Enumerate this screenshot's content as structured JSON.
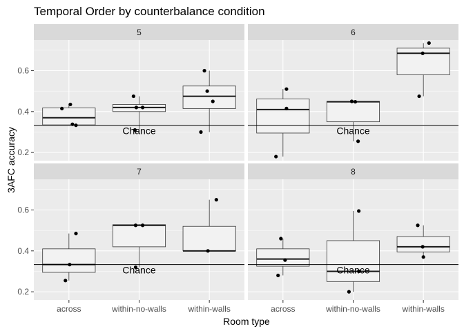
{
  "chart_data": {
    "type": "boxplot",
    "title": "Temporal Order by counterbalance condition",
    "xlabel": "Room type",
    "ylabel": "3AFC accuracy",
    "categories": [
      "across",
      "within-no-walls",
      "within-walls"
    ],
    "y_ticks": [
      0.2,
      0.4,
      0.6
    ],
    "y_tick_labels": [
      "0.2",
      "0.4",
      "0.6"
    ],
    "ylim": [
      0.16,
      0.75
    ],
    "reference_line": {
      "value": 0.333,
      "label": "Chance"
    },
    "grid": true,
    "colors": {
      "panel_bg": "#ebebeb",
      "strip_bg": "#d9d9d9",
      "grid": "#ffffff",
      "box_fill": "#f2f2f2",
      "box_stroke": "#333333",
      "point": "#000000"
    },
    "panels": [
      {
        "label": "5",
        "boxes": [
          {
            "category": "across",
            "min": 0.333,
            "q1": 0.335,
            "median": 0.37,
            "q3": 0.418,
            "max": 0.435
          },
          {
            "category": "within-no-walls",
            "min": 0.31,
            "q1": 0.4,
            "median": 0.42,
            "q3": 0.435,
            "max": 0.475
          },
          {
            "category": "within-walls",
            "min": 0.3,
            "q1": 0.415,
            "median": 0.475,
            "q3": 0.525,
            "max": 0.6
          }
        ],
        "points": [
          {
            "category": "across",
            "y": 0.415,
            "jitter": -0.1
          },
          {
            "category": "across",
            "y": 0.435,
            "jitter": 0.02
          },
          {
            "category": "across",
            "y": 0.338,
            "jitter": 0.05
          },
          {
            "category": "across",
            "y": 0.333,
            "jitter": 0.1
          },
          {
            "category": "within-no-walls",
            "y": 0.475,
            "jitter": -0.08
          },
          {
            "category": "within-no-walls",
            "y": 0.42,
            "jitter": -0.04
          },
          {
            "category": "within-no-walls",
            "y": 0.42,
            "jitter": 0.05
          },
          {
            "category": "within-no-walls",
            "y": 0.31,
            "jitter": -0.06
          },
          {
            "category": "within-walls",
            "y": 0.6,
            "jitter": -0.07
          },
          {
            "category": "within-walls",
            "y": 0.5,
            "jitter": -0.03
          },
          {
            "category": "within-walls",
            "y": 0.45,
            "jitter": 0.05
          },
          {
            "category": "within-walls",
            "y": 0.3,
            "jitter": -0.12
          }
        ]
      },
      {
        "label": "6",
        "boxes": [
          {
            "category": "across",
            "min": 0.18,
            "q1": 0.295,
            "median": 0.41,
            "q3": 0.462,
            "max": 0.51
          },
          {
            "category": "within-no-walls",
            "min": 0.255,
            "q1": 0.35,
            "median": 0.448,
            "q3": 0.45,
            "max": 0.45
          },
          {
            "category": "within-walls",
            "min": 0.475,
            "q1": 0.58,
            "median": 0.685,
            "q3": 0.71,
            "max": 0.735
          }
        ],
        "points": [
          {
            "category": "across",
            "y": 0.51,
            "jitter": 0.05
          },
          {
            "category": "across",
            "y": 0.415,
            "jitter": 0.05
          },
          {
            "category": "across",
            "y": 0.18,
            "jitter": -0.1
          },
          {
            "category": "within-no-walls",
            "y": 0.45,
            "jitter": -0.02
          },
          {
            "category": "within-no-walls",
            "y": 0.448,
            "jitter": 0.03
          },
          {
            "category": "within-no-walls",
            "y": 0.255,
            "jitter": 0.07
          },
          {
            "category": "within-walls",
            "y": 0.735,
            "jitter": 0.08
          },
          {
            "category": "within-walls",
            "y": 0.685,
            "jitter": -0.01
          },
          {
            "category": "within-walls",
            "y": 0.475,
            "jitter": -0.06
          }
        ]
      },
      {
        "label": "7",
        "boxes": [
          {
            "category": "across",
            "min": 0.255,
            "q1": 0.295,
            "median": 0.333,
            "q3": 0.41,
            "max": 0.485
          },
          {
            "category": "within-no-walls",
            "min": 0.32,
            "q1": 0.42,
            "median": 0.525,
            "q3": 0.528,
            "max": 0.53
          },
          {
            "category": "within-walls",
            "min": 0.4,
            "q1": 0.4,
            "median": 0.4,
            "q3": 0.52,
            "max": 0.65
          }
        ],
        "points": [
          {
            "category": "across",
            "y": 0.485,
            "jitter": 0.1
          },
          {
            "category": "across",
            "y": 0.333,
            "jitter": 0.01
          },
          {
            "category": "across",
            "y": 0.255,
            "jitter": -0.05
          },
          {
            "category": "within-no-walls",
            "y": 0.525,
            "jitter": -0.05
          },
          {
            "category": "within-no-walls",
            "y": 0.525,
            "jitter": 0.05
          },
          {
            "category": "within-no-walls",
            "y": 0.32,
            "jitter": -0.05
          },
          {
            "category": "within-walls",
            "y": 0.65,
            "jitter": 0.1
          },
          {
            "category": "within-walls",
            "y": 0.4,
            "jitter": -0.02
          }
        ]
      },
      {
        "label": "8",
        "boxes": [
          {
            "category": "across",
            "min": 0.28,
            "q1": 0.325,
            "median": 0.36,
            "q3": 0.41,
            "max": 0.46
          },
          {
            "category": "within-no-walls",
            "min": 0.2,
            "q1": 0.25,
            "median": 0.3,
            "q3": 0.45,
            "max": 0.595
          },
          {
            "category": "within-walls",
            "min": 0.37,
            "q1": 0.395,
            "median": 0.42,
            "q3": 0.47,
            "max": 0.525
          }
        ],
        "points": [
          {
            "category": "across",
            "y": 0.46,
            "jitter": -0.03
          },
          {
            "category": "across",
            "y": 0.355,
            "jitter": 0.03
          },
          {
            "category": "across",
            "y": 0.28,
            "jitter": -0.07
          },
          {
            "category": "within-no-walls",
            "y": 0.595,
            "jitter": 0.08
          },
          {
            "category": "within-no-walls",
            "y": 0.3,
            "jitter": 0.08
          },
          {
            "category": "within-no-walls",
            "y": 0.2,
            "jitter": -0.06
          },
          {
            "category": "within-walls",
            "y": 0.525,
            "jitter": -0.08
          },
          {
            "category": "within-walls",
            "y": 0.42,
            "jitter": -0.01
          },
          {
            "category": "within-walls",
            "y": 0.37,
            "jitter": 0.0
          }
        ]
      }
    ]
  }
}
